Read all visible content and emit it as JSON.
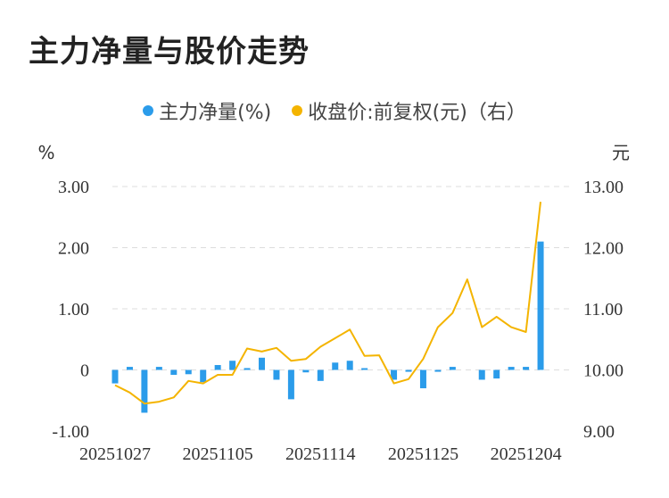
{
  "title": "主力净量与股价走势",
  "legend": [
    {
      "label": "主力净量(%)",
      "color": "#2b9cea"
    },
    {
      "label": "收盘价:前复权(元)（右）",
      "color": "#f4b400"
    }
  ],
  "chart_data": {
    "type": "bar+line",
    "left_unit": "%",
    "right_unit": "元",
    "left_ticks": [
      "3.00",
      "2.00",
      "1.00",
      "0",
      "-1.00"
    ],
    "right_ticks": [
      "13.00",
      "12.00",
      "11.00",
      "10.00",
      "9.00"
    ],
    "left_ylim": [
      -1,
      3
    ],
    "right_ylim": [
      9,
      13
    ],
    "x_labels": [
      "20251027",
      "20251105",
      "20251114",
      "20251125",
      "20251204"
    ],
    "x_label_index": [
      0,
      7,
      14,
      21,
      28
    ],
    "series": [
      {
        "name": "主力净量(%)",
        "type": "bar",
        "axis": "left",
        "values": [
          -0.22,
          0.05,
          -0.7,
          0.05,
          -0.08,
          -0.07,
          -0.2,
          0.08,
          0.15,
          0.03,
          0.2,
          -0.16,
          -0.48,
          -0.04,
          -0.18,
          0.12,
          0.15,
          0.02,
          0.0,
          -0.16,
          -0.03,
          -0.3,
          -0.03,
          0.05,
          0.0,
          -0.16,
          -0.14,
          0.05,
          0.05,
          2.1
        ]
      },
      {
        "name": "收盘价:前复权(元)（右）",
        "type": "line",
        "axis": "right",
        "values": [
          9.75,
          9.63,
          9.45,
          9.48,
          9.55,
          9.82,
          9.78,
          9.92,
          9.92,
          10.35,
          10.3,
          10.36,
          10.15,
          10.18,
          10.38,
          10.52,
          10.66,
          10.23,
          10.24,
          9.78,
          9.85,
          10.18,
          10.7,
          10.93,
          11.48,
          10.7,
          10.87,
          10.7,
          10.62,
          12.75
        ]
      }
    ],
    "grid": true
  }
}
